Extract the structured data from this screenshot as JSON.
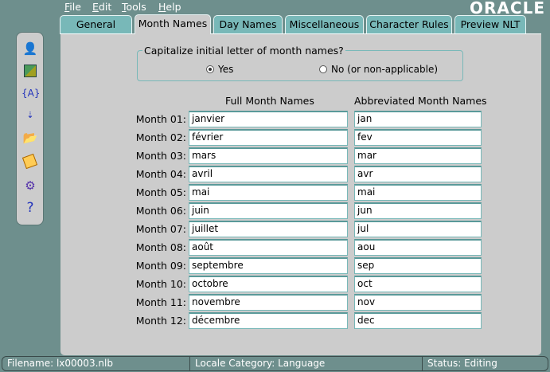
{
  "menu": [
    "File",
    "Edit",
    "Tools",
    "Help"
  ],
  "brand": "ORACLE",
  "tabs": [
    "General",
    "Month Names",
    "Day Names",
    "Miscellaneous",
    "Character Rules",
    "Preview NLT"
  ],
  "active_tab": "Month Names",
  "toolbar_icons": [
    "user-info-icon",
    "map-icon",
    "variable-icon",
    "sort-icon",
    "open-folder-icon",
    "save-icon",
    "settings-icon",
    "help-icon"
  ],
  "toolbar_help": "?",
  "toolbar_var": "{A}",
  "capitalize": {
    "label": "Capitalize initial letter of month names?",
    "yes": "Yes",
    "no": "No (or non-applicable)",
    "selected": "Yes"
  },
  "headers": {
    "full": "Full Month Names",
    "abbr": "Abbreviated Month Names"
  },
  "months": [
    {
      "label": "Month 01:",
      "full": "janvier",
      "abbr": "jan"
    },
    {
      "label": "Month 02:",
      "full": "février",
      "abbr": "fev"
    },
    {
      "label": "Month 03:",
      "full": "mars",
      "abbr": "mar"
    },
    {
      "label": "Month 04:",
      "full": "avril",
      "abbr": "avr"
    },
    {
      "label": "Month 05:",
      "full": "mai",
      "abbr": "mai"
    },
    {
      "label": "Month 06:",
      "full": "juin",
      "abbr": "jun"
    },
    {
      "label": "Month 07:",
      "full": "juillet",
      "abbr": "jul"
    },
    {
      "label": "Month 08:",
      "full": "août",
      "abbr": "aou"
    },
    {
      "label": "Month 09:",
      "full": "septembre",
      "abbr": "sep"
    },
    {
      "label": "Month 10:",
      "full": "octobre",
      "abbr": "oct"
    },
    {
      "label": "Month 11:",
      "full": "novembre",
      "abbr": "nov"
    },
    {
      "label": "Month 12:",
      "full": "décembre",
      "abbr": "dec"
    }
  ],
  "status": {
    "filename": "Filename: lx00003.nlb",
    "category": "Locale Category: Language",
    "state": "Status: Editing"
  }
}
